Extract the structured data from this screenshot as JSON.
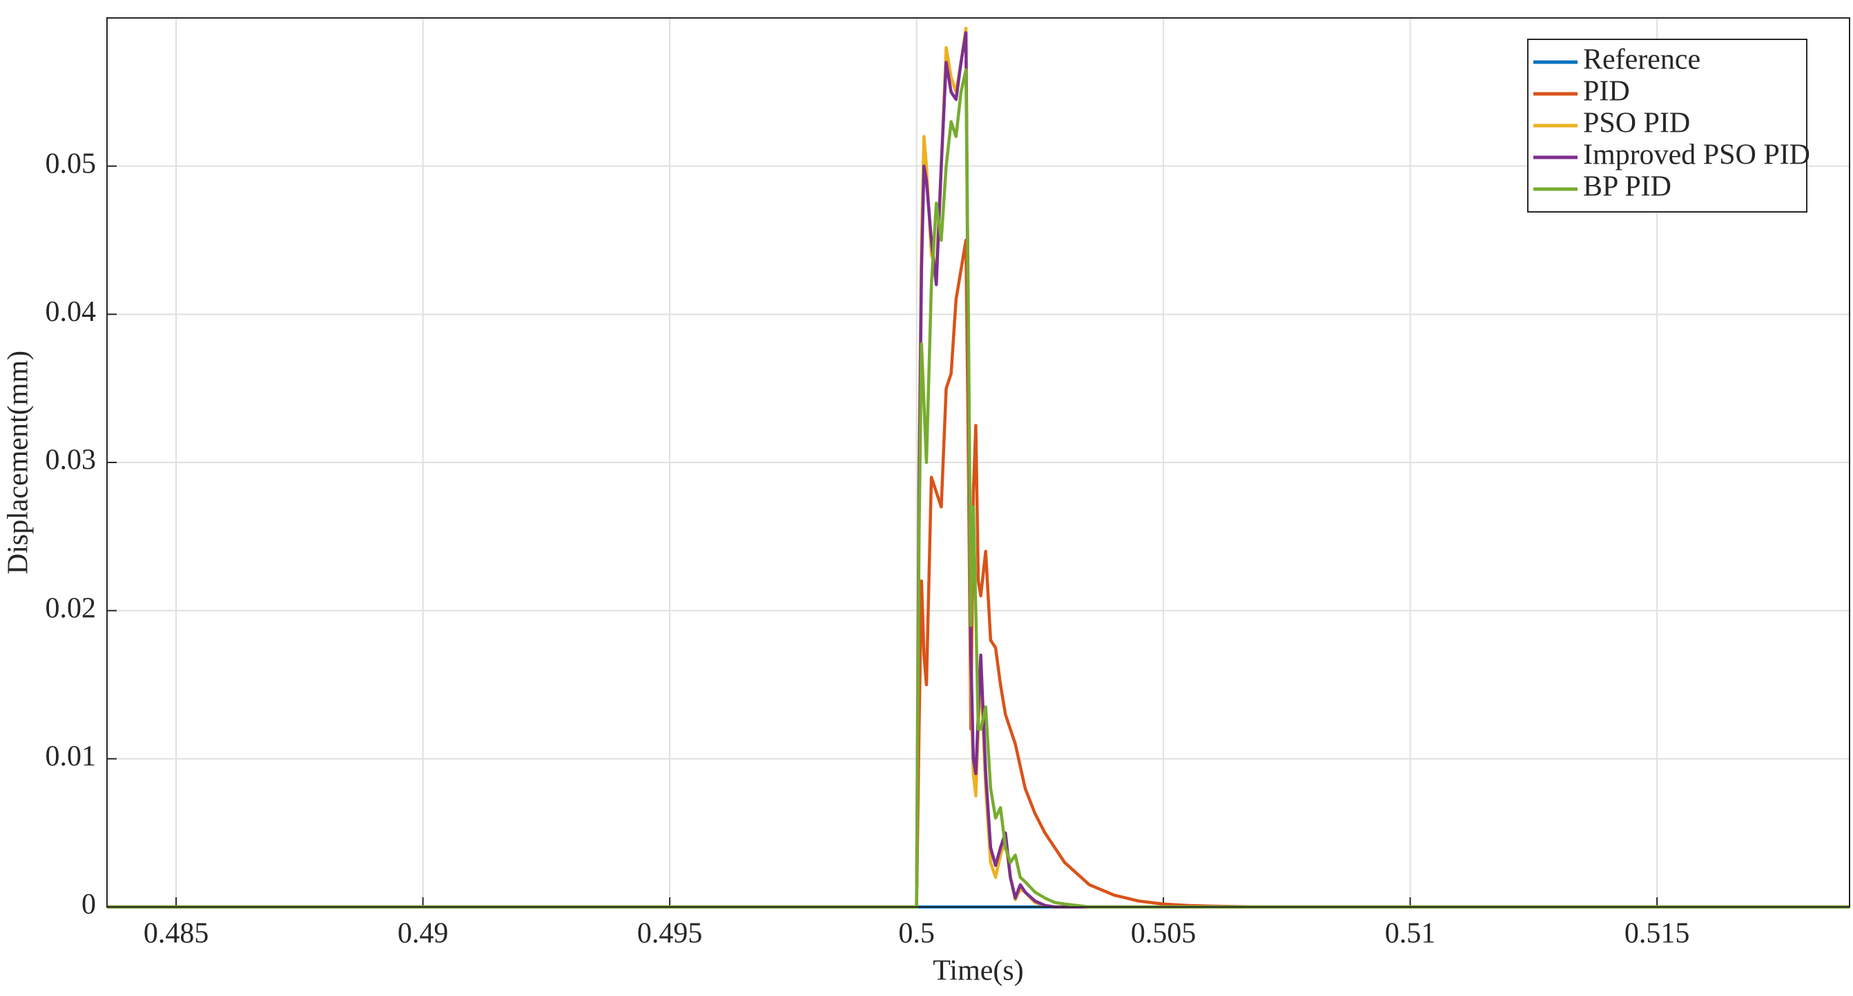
{
  "chart_data": {
    "type": "line",
    "xlabel": "Time(s)",
    "ylabel": "Displacement(mm)",
    "x": [
      0.4836,
      0.5,
      0.50005,
      0.5001,
      0.50015,
      0.5002,
      0.5003,
      0.5004,
      0.5005,
      0.5006,
      0.5007,
      0.5008,
      0.5009,
      0.501,
      0.50105,
      0.5011,
      0.50115,
      0.5012,
      0.50125,
      0.5013,
      0.5014,
      0.5015,
      0.5016,
      0.5017,
      0.5018,
      0.5019,
      0.502,
      0.5021,
      0.5022,
      0.5024,
      0.5026,
      0.5028,
      0.503,
      0.5035,
      0.504,
      0.5045,
      0.505,
      0.5055,
      0.506,
      0.507,
      0.5189
    ],
    "series": [
      {
        "name": "Reference",
        "color": "#0072bd",
        "values": [
          0,
          0,
          0,
          0,
          0,
          0,
          0,
          0,
          0,
          0,
          0,
          0,
          0,
          0,
          0,
          0,
          0,
          0,
          0,
          0,
          0,
          0,
          0,
          0,
          0,
          0,
          0,
          0,
          0,
          0,
          0,
          0,
          0,
          0,
          0,
          0,
          0,
          0,
          0,
          0,
          0
        ]
      },
      {
        "name": "PID",
        "color": "#d95319",
        "values": [
          0,
          0,
          0.012,
          0.022,
          0.017,
          0.015,
          0.029,
          0.028,
          0.027,
          0.035,
          0.036,
          0.041,
          0.043,
          0.045,
          0.03,
          0.012,
          0.028,
          0.0325,
          0.022,
          0.021,
          0.024,
          0.018,
          0.0175,
          0.015,
          0.013,
          0.012,
          0.011,
          0.0095,
          0.008,
          0.0063,
          0.005,
          0.004,
          0.003,
          0.0015,
          0.0008,
          0.0004,
          0.0002,
          0.0001,
          5e-05,
          0,
          0
        ]
      },
      {
        "name": "PSO PID",
        "color": "#edb120",
        "values": [
          0,
          0,
          0.03,
          0.045,
          0.052,
          0.05,
          0.044,
          0.043,
          0.05,
          0.058,
          0.056,
          0.055,
          0.057,
          0.0593,
          0.035,
          0.015,
          0.009,
          0.0075,
          0.012,
          0.016,
          0.008,
          0.003,
          0.002,
          0.0035,
          0.0045,
          0.002,
          0.0005,
          0.0012,
          0.001,
          0.0003,
          0.0001,
          0,
          0,
          0,
          0,
          0,
          0,
          0,
          0,
          0,
          0
        ]
      },
      {
        "name": "Improved PSO PID",
        "color": "#7e2f8e",
        "values": [
          0,
          0,
          0.028,
          0.043,
          0.05,
          0.049,
          0.045,
          0.042,
          0.05,
          0.057,
          0.055,
          0.0545,
          0.057,
          0.059,
          0.037,
          0.017,
          0.01,
          0.009,
          0.013,
          0.017,
          0.009,
          0.004,
          0.0028,
          0.004,
          0.005,
          0.002,
          0.0006,
          0.0015,
          0.001,
          0.0004,
          0.0001,
          0,
          0,
          0,
          0,
          0,
          0,
          0,
          0,
          0,
          0
        ]
      },
      {
        "name": "BP PID",
        "color": "#77ac30",
        "values": [
          0,
          0,
          0.025,
          0.038,
          0.034,
          0.03,
          0.042,
          0.0475,
          0.045,
          0.05,
          0.053,
          0.052,
          0.055,
          0.0565,
          0.04,
          0.019,
          0.027,
          0.02,
          0.012,
          0.012,
          0.0135,
          0.008,
          0.006,
          0.0067,
          0.004,
          0.003,
          0.0035,
          0.002,
          0.0017,
          0.001,
          0.0006,
          0.0003,
          0.0002,
          0,
          0,
          0,
          0,
          0,
          0,
          0,
          0
        ]
      }
    ],
    "xlim": [
      0.4836,
      0.5189
    ],
    "xticks": [
      0.485,
      0.49,
      0.495,
      0.5,
      0.505,
      0.51,
      0.515
    ],
    "ylim": [
      0,
      0.06
    ],
    "yticks": [
      0,
      0.01,
      0.02,
      0.03,
      0.04,
      0.05
    ],
    "grid": true,
    "legend": "northeast"
  }
}
